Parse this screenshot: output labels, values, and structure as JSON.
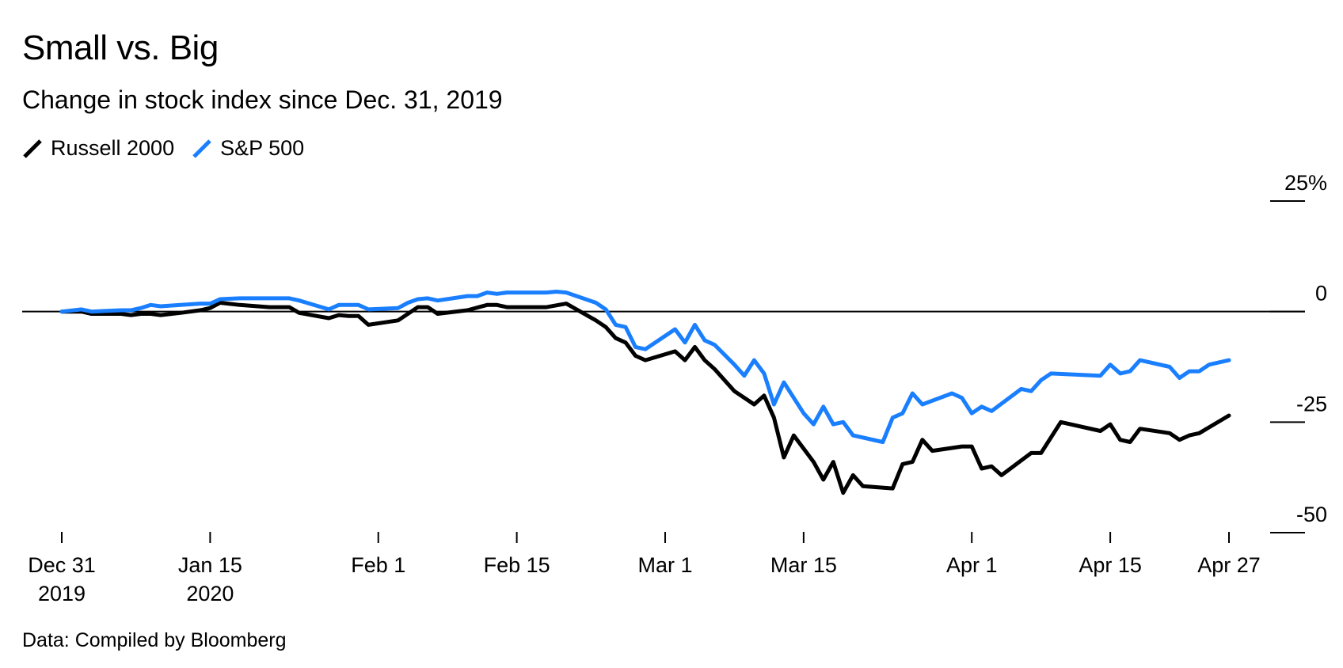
{
  "header": {
    "title": "Small vs. Big",
    "subtitle": "Change in stock index since Dec. 31, 2019"
  },
  "legend": [
    {
      "name": "Russell 2000",
      "color": "#000000"
    },
    {
      "name": "S&P 500",
      "color": "#1a7fff"
    }
  ],
  "source": "Data: Compiled by Bloomberg",
  "chart_data": {
    "type": "line",
    "title": "Small vs. Big",
    "subtitle": "Change in stock index since Dec. 31, 2019",
    "xlabel": "",
    "ylabel": "",
    "x_units": "days since Dec 31, 2019",
    "x_range": [
      0,
      118
    ],
    "ylim": [
      -50,
      25
    ],
    "y_ticks": [
      25,
      0,
      -25,
      -50
    ],
    "y_tick_labels": [
      "25%",
      "0",
      "-25",
      "-50"
    ],
    "x_ticks": [
      {
        "x": 0,
        "line1": "Dec 31",
        "line2": "2019"
      },
      {
        "x": 15,
        "line1": "Jan 15",
        "line2": "2020"
      },
      {
        "x": 32,
        "line1": "Feb 1",
        "line2": ""
      },
      {
        "x": 46,
        "line1": "Feb 15",
        "line2": ""
      },
      {
        "x": 61,
        "line1": "Mar 1",
        "line2": ""
      },
      {
        "x": 75,
        "line1": "Mar 15",
        "line2": ""
      },
      {
        "x": 92,
        "line1": "Apr 1",
        "line2": ""
      },
      {
        "x": 106,
        "line1": "Apr 15",
        "line2": ""
      },
      {
        "x": 118,
        "line1": "Apr 27",
        "line2": ""
      }
    ],
    "legend_position": "top-left",
    "zero_line": true,
    "series": [
      {
        "name": "Russell 2000",
        "color": "#000000",
        "points": [
          [
            0,
            0
          ],
          [
            2,
            0
          ],
          [
            3,
            -0.5
          ],
          [
            6,
            -0.5
          ],
          [
            7,
            -0.8
          ],
          [
            8,
            -0.5
          ],
          [
            9,
            -0.5
          ],
          [
            10,
            -0.8
          ],
          [
            12,
            -0.3
          ],
          [
            14,
            0.3
          ],
          [
            15,
            0.8
          ],
          [
            16,
            2
          ],
          [
            18,
            1.5
          ],
          [
            21,
            1
          ],
          [
            23,
            1
          ],
          [
            24,
            -0.3
          ],
          [
            27,
            -1.5
          ],
          [
            28,
            -0.8
          ],
          [
            29,
            -1
          ],
          [
            30,
            -1
          ],
          [
            31,
            -3
          ],
          [
            34,
            -2
          ],
          [
            36,
            1
          ],
          [
            37,
            1
          ],
          [
            38,
            -0.5
          ],
          [
            41,
            0.3
          ],
          [
            43,
            1.5
          ],
          [
            44,
            1.5
          ],
          [
            45,
            1
          ],
          [
            49,
            1
          ],
          [
            51,
            1.8
          ],
          [
            54,
            -2
          ],
          [
            55,
            -3.5
          ],
          [
            56,
            -6
          ],
          [
            57,
            -7
          ],
          [
            58,
            -10
          ],
          [
            59,
            -11
          ],
          [
            62,
            -9
          ],
          [
            63,
            -11
          ],
          [
            64,
            -8
          ],
          [
            65,
            -11
          ],
          [
            66,
            -13
          ],
          [
            68,
            -18
          ],
          [
            70,
            -21
          ],
          [
            71,
            -19
          ],
          [
            72,
            -24
          ],
          [
            73,
            -33
          ],
          [
            74,
            -28
          ],
          [
            76,
            -34
          ],
          [
            77,
            -38
          ],
          [
            78,
            -34
          ],
          [
            79,
            -41
          ],
          [
            80,
            -37
          ],
          [
            81,
            -39.5
          ],
          [
            84,
            -40
          ],
          [
            85,
            -34.5
          ],
          [
            86,
            -34
          ],
          [
            87,
            -29
          ],
          [
            88,
            -31.5
          ],
          [
            91,
            -30.5
          ],
          [
            92,
            -30.5
          ],
          [
            93,
            -35.5
          ],
          [
            94,
            -35
          ],
          [
            95,
            -37
          ],
          [
            98,
            -32
          ],
          [
            99,
            -32
          ],
          [
            101,
            -25
          ],
          [
            105,
            -27
          ],
          [
            106,
            -25.5
          ],
          [
            107,
            -29
          ],
          [
            108,
            -29.5
          ],
          [
            109,
            -26.5
          ],
          [
            112,
            -27.5
          ],
          [
            113,
            -29
          ],
          [
            114,
            -28
          ],
          [
            115,
            -27.5
          ],
          [
            118,
            -23.5
          ]
        ]
      },
      {
        "name": "S&P 500",
        "color": "#1a7fff",
        "points": [
          [
            0,
            0
          ],
          [
            2,
            0.5
          ],
          [
            3,
            0
          ],
          [
            6,
            0.3
          ],
          [
            7,
            0.3
          ],
          [
            8,
            0.8
          ],
          [
            9,
            1.5
          ],
          [
            10,
            1.2
          ],
          [
            12,
            1.5
          ],
          [
            14,
            1.8
          ],
          [
            15,
            1.8
          ],
          [
            16,
            2.8
          ],
          [
            18,
            3
          ],
          [
            21,
            3
          ],
          [
            23,
            3
          ],
          [
            24,
            2.5
          ],
          [
            27,
            0.5
          ],
          [
            28,
            1.5
          ],
          [
            29,
            1.5
          ],
          [
            30,
            1.5
          ],
          [
            31,
            0.5
          ],
          [
            34,
            0.8
          ],
          [
            35,
            2
          ],
          [
            36,
            2.8
          ],
          [
            37,
            3
          ],
          [
            38,
            2.5
          ],
          [
            41,
            3.5
          ],
          [
            42,
            3.5
          ],
          [
            43,
            4.3
          ],
          [
            44,
            4
          ],
          [
            45,
            4.3
          ],
          [
            49,
            4.3
          ],
          [
            50,
            4.5
          ],
          [
            51,
            4.3
          ],
          [
            54,
            2
          ],
          [
            55,
            0.5
          ],
          [
            56,
            -3
          ],
          [
            57,
            -3.5
          ],
          [
            58,
            -8
          ],
          [
            59,
            -8.5
          ],
          [
            62,
            -4
          ],
          [
            63,
            -7
          ],
          [
            64,
            -3
          ],
          [
            65,
            -6.5
          ],
          [
            66,
            -7.5
          ],
          [
            68,
            -12
          ],
          [
            69,
            -14.5
          ],
          [
            70,
            -11
          ],
          [
            71,
            -14
          ],
          [
            72,
            -21
          ],
          [
            73,
            -16
          ],
          [
            75,
            -23
          ],
          [
            76,
            -25.5
          ],
          [
            77,
            -21.5
          ],
          [
            78,
            -25.5
          ],
          [
            79,
            -25
          ],
          [
            80,
            -28
          ],
          [
            83,
            -29.5
          ],
          [
            84,
            -24
          ],
          [
            85,
            -23
          ],
          [
            86,
            -18.5
          ],
          [
            87,
            -21
          ],
          [
            90,
            -18.5
          ],
          [
            91,
            -19.5
          ],
          [
            92,
            -23
          ],
          [
            93,
            -21.5
          ],
          [
            94,
            -22.5
          ],
          [
            97,
            -17.5
          ],
          [
            98,
            -18
          ],
          [
            99,
            -15.5
          ],
          [
            100,
            -14
          ],
          [
            105,
            -14.5
          ],
          [
            106,
            -12
          ],
          [
            107,
            -14
          ],
          [
            108,
            -13.5
          ],
          [
            109,
            -11
          ],
          [
            112,
            -12.5
          ],
          [
            113,
            -15
          ],
          [
            114,
            -13.5
          ],
          [
            115,
            -13.5
          ],
          [
            116,
            -12
          ],
          [
            118,
            -11
          ]
        ]
      }
    ]
  }
}
